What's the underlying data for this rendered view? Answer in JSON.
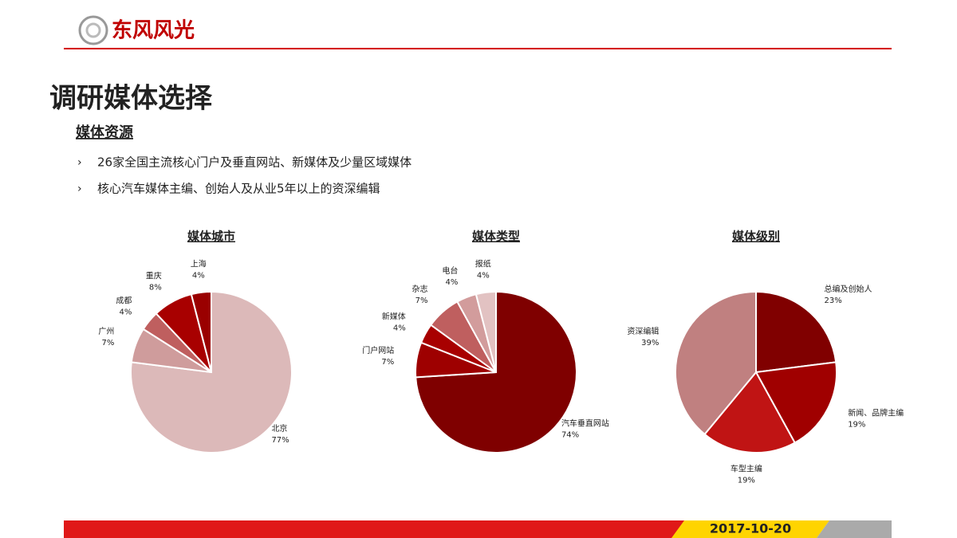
{
  "header": {
    "logo": "东风风光"
  },
  "slide": {
    "title": "调研媒体选择",
    "subtitle": "媒体资源",
    "bullets": [
      "26家全国主流核心门户及垂直网站、新媒体及少量区域媒体",
      "核心汽车媒体主编、创始人及从业5年以上的资深编辑"
    ],
    "date": "2017-10-20"
  },
  "chart_data": [
    {
      "type": "pie",
      "title": "媒体城市",
      "categories": [
        "北京",
        "广州",
        "成都",
        "重庆",
        "上海"
      ],
      "values": [
        77,
        7,
        4,
        8,
        4
      ],
      "value_labels": [
        "77%",
        "7%",
        "4%",
        "8%",
        "4%"
      ],
      "colors": [
        "#dcb9b9",
        "#cf9c9c",
        "#bf5f5f",
        "#a80000",
        "#9a0000"
      ]
    },
    {
      "type": "pie",
      "title": "媒体类型",
      "categories": [
        "汽车垂直网站",
        "门户网站",
        "新媒体",
        "杂志",
        "电台",
        "报纸"
      ],
      "values": [
        74,
        7,
        4,
        7,
        4,
        4
      ],
      "value_labels": [
        "74%",
        "7%",
        "4%",
        "7%",
        "4%",
        "4%"
      ],
      "colors": [
        "#7f0000",
        "#9e0000",
        "#a80000",
        "#bf5f5f",
        "#d29c9c",
        "#e2c2c2"
      ]
    },
    {
      "type": "pie",
      "title": "媒体级别",
      "categories": [
        "总编及创始人",
        "新闻、品牌主编",
        "车型主编",
        "资深编辑"
      ],
      "values": [
        23,
        19,
        19,
        39
      ],
      "value_labels": [
        "23%",
        "19%",
        "19%",
        "39%"
      ],
      "colors": [
        "#800000",
        "#a00000",
        "#c01414",
        "#c08080"
      ]
    }
  ]
}
